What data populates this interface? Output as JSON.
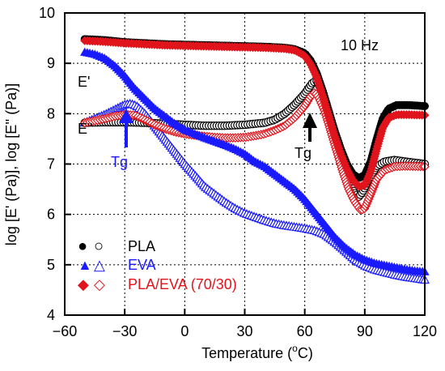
{
  "chart_data": {
    "type": "scatter",
    "title": "",
    "xlabel": "Temperature (",
    "xlabel_unit_sup": "o",
    "xlabel_unit_end": "C)",
    "ylabel": "log [E' (Pa)], log [E'' (Pa)]",
    "xlim": [
      -60,
      120
    ],
    "ylim": [
      4,
      10
    ],
    "x_ticks": [
      -60,
      -30,
      0,
      30,
      60,
      90,
      120
    ],
    "x_tick_labels": [
      "−60",
      "−30",
      "0",
      "30",
      "60",
      "90",
      "120"
    ],
    "y_ticks": [
      4,
      5,
      6,
      7,
      8,
      9,
      10
    ],
    "y_tick_labels": [
      "4",
      "5",
      "6",
      "7",
      "8",
      "9",
      "10"
    ],
    "grid": "dashed",
    "legend_placement": "bottom-left",
    "annotations": {
      "frequency": "10 Hz",
      "e_storage": "E'",
      "e_loss": "E\"",
      "tg_left": "Tg",
      "tg_right": "Tg"
    },
    "legend": [
      {
        "label": "PLA",
        "color": "#000000",
        "filled": "●",
        "open": "○"
      },
      {
        "label": "EVA",
        "color": "#1a1aff",
        "filled": "▲",
        "open": "△"
      },
      {
        "label": "PLA/EVA (70/30)",
        "color": "#e0141c",
        "filled": "◆",
        "open": "◇"
      }
    ],
    "series": [
      {
        "name": "PLA",
        "modulus": "E'",
        "marker": "circle",
        "fill": "filled",
        "color": "#000000",
        "points": [
          [
            -50,
            9.48
          ],
          [
            -40,
            9.46
          ],
          [
            -30,
            9.42
          ],
          [
            -20,
            9.4
          ],
          [
            -10,
            9.38
          ],
          [
            0,
            9.37
          ],
          [
            10,
            9.36
          ],
          [
            20,
            9.35
          ],
          [
            30,
            9.34
          ],
          [
            40,
            9.33
          ],
          [
            50,
            9.31
          ],
          [
            55,
            9.28
          ],
          [
            60,
            9.2
          ],
          [
            63,
            9.05
          ],
          [
            66,
            8.8
          ],
          [
            69,
            8.45
          ],
          [
            72,
            8.05
          ],
          [
            75,
            7.65
          ],
          [
            78,
            7.3
          ],
          [
            81,
            7.0
          ],
          [
            84,
            6.8
          ],
          [
            87,
            6.72
          ],
          [
            90,
            6.78
          ],
          [
            93,
            7.05
          ],
          [
            96,
            7.5
          ],
          [
            99,
            7.9
          ],
          [
            102,
            8.1
          ],
          [
            106,
            8.17
          ],
          [
            112,
            8.17
          ],
          [
            120,
            8.15
          ]
        ]
      },
      {
        "name": "PLA",
        "modulus": "E\"",
        "marker": "circle",
        "fill": "open",
        "color": "#000000",
        "points": [
          [
            -50,
            7.82
          ],
          [
            -40,
            7.83
          ],
          [
            -30,
            7.83
          ],
          [
            -20,
            7.82
          ],
          [
            -10,
            7.8
          ],
          [
            0,
            7.78
          ],
          [
            10,
            7.76
          ],
          [
            20,
            7.76
          ],
          [
            30,
            7.78
          ],
          [
            40,
            7.82
          ],
          [
            45,
            7.88
          ],
          [
            50,
            8.0
          ],
          [
            55,
            8.18
          ],
          [
            60,
            8.4
          ],
          [
            64,
            8.62
          ],
          [
            66,
            8.65
          ],
          [
            68,
            8.5
          ],
          [
            70,
            8.2
          ],
          [
            73,
            7.75
          ],
          [
            76,
            7.35
          ],
          [
            79,
            6.95
          ],
          [
            82,
            6.65
          ],
          [
            85,
            6.42
          ],
          [
            87,
            6.35
          ],
          [
            89,
            6.45
          ],
          [
            92,
            6.7
          ],
          [
            96,
            6.95
          ],
          [
            100,
            7.05
          ],
          [
            105,
            7.08
          ],
          [
            110,
            7.05
          ],
          [
            120,
            7.0
          ]
        ]
      },
      {
        "name": "EVA",
        "modulus": "E'",
        "marker": "triangle",
        "fill": "filled",
        "color": "#1a1aff",
        "points": [
          [
            -50,
            9.22
          ],
          [
            -45,
            9.18
          ],
          [
            -40,
            9.1
          ],
          [
            -35,
            8.95
          ],
          [
            -30,
            8.75
          ],
          [
            -25,
            8.5
          ],
          [
            -20,
            8.3
          ],
          [
            -15,
            8.1
          ],
          [
            -10,
            7.95
          ],
          [
            -5,
            7.8
          ],
          [
            0,
            7.68
          ],
          [
            5,
            7.6
          ],
          [
            10,
            7.52
          ],
          [
            15,
            7.45
          ],
          [
            20,
            7.38
          ],
          [
            25,
            7.3
          ],
          [
            30,
            7.2
          ],
          [
            35,
            7.05
          ],
          [
            40,
            6.95
          ],
          [
            45,
            6.8
          ],
          [
            50,
            6.65
          ],
          [
            55,
            6.5
          ],
          [
            60,
            6.3
          ],
          [
            65,
            6.05
          ],
          [
            70,
            5.8
          ],
          [
            75,
            5.55
          ],
          [
            80,
            5.35
          ],
          [
            85,
            5.2
          ],
          [
            90,
            5.1
          ],
          [
            95,
            5.03
          ],
          [
            100,
            4.99
          ],
          [
            105,
            4.95
          ],
          [
            110,
            4.91
          ],
          [
            115,
            4.88
          ],
          [
            120,
            4.86
          ]
        ]
      },
      {
        "name": "EVA",
        "modulus": "E\"",
        "marker": "triangle",
        "fill": "open",
        "color": "#1a1aff",
        "points": [
          [
            -50,
            7.82
          ],
          [
            -45,
            7.9
          ],
          [
            -40,
            7.98
          ],
          [
            -35,
            8.08
          ],
          [
            -30,
            8.18
          ],
          [
            -27,
            8.2
          ],
          [
            -24,
            8.15
          ],
          [
            -20,
            8.0
          ],
          [
            -15,
            7.75
          ],
          [
            -10,
            7.5
          ],
          [
            -5,
            7.25
          ],
          [
            0,
            7.0
          ],
          [
            5,
            6.78
          ],
          [
            10,
            6.55
          ],
          [
            15,
            6.4
          ],
          [
            20,
            6.25
          ],
          [
            25,
            6.12
          ],
          [
            30,
            6.02
          ],
          [
            35,
            5.95
          ],
          [
            40,
            5.88
          ],
          [
            45,
            5.82
          ],
          [
            50,
            5.78
          ],
          [
            55,
            5.75
          ],
          [
            60,
            5.72
          ],
          [
            65,
            5.68
          ],
          [
            70,
            5.6
          ],
          [
            75,
            5.45
          ],
          [
            80,
            5.28
          ],
          [
            85,
            5.1
          ],
          [
            90,
            4.98
          ],
          [
            95,
            4.9
          ],
          [
            100,
            4.85
          ],
          [
            105,
            4.8
          ],
          [
            110,
            4.76
          ],
          [
            115,
            4.73
          ],
          [
            120,
            4.7
          ]
        ]
      },
      {
        "name": "PLA/EVA (70/30)",
        "modulus": "E'",
        "marker": "diamond",
        "fill": "filled",
        "color": "#e0141c",
        "points": [
          [
            -50,
            9.45
          ],
          [
            -40,
            9.43
          ],
          [
            -30,
            9.4
          ],
          [
            -20,
            9.38
          ],
          [
            -10,
            9.36
          ],
          [
            0,
            9.35
          ],
          [
            10,
            9.34
          ],
          [
            20,
            9.33
          ],
          [
            30,
            9.32
          ],
          [
            40,
            9.31
          ],
          [
            50,
            9.29
          ],
          [
            55,
            9.26
          ],
          [
            60,
            9.15
          ],
          [
            63,
            8.98
          ],
          [
            66,
            8.72
          ],
          [
            69,
            8.35
          ],
          [
            72,
            7.95
          ],
          [
            75,
            7.55
          ],
          [
            78,
            7.2
          ],
          [
            81,
            6.9
          ],
          [
            84,
            6.68
          ],
          [
            87,
            6.55
          ],
          [
            90,
            6.58
          ],
          [
            93,
            6.85
          ],
          [
            96,
            7.3
          ],
          [
            99,
            7.72
          ],
          [
            102,
            7.92
          ],
          [
            106,
            7.98
          ],
          [
            112,
            7.98
          ],
          [
            120,
            7.97
          ]
        ]
      },
      {
        "name": "PLA/EVA (70/30)",
        "modulus": "E\"",
        "marker": "diamond",
        "fill": "open",
        "color": "#e0141c",
        "points": [
          [
            -50,
            7.82
          ],
          [
            -45,
            7.86
          ],
          [
            -40,
            7.9
          ],
          [
            -35,
            7.95
          ],
          [
            -30,
            7.98
          ],
          [
            -25,
            7.97
          ],
          [
            -20,
            7.88
          ],
          [
            -15,
            7.78
          ],
          [
            -10,
            7.7
          ],
          [
            -5,
            7.64
          ],
          [
            0,
            7.6
          ],
          [
            5,
            7.57
          ],
          [
            10,
            7.55
          ],
          [
            15,
            7.53
          ],
          [
            20,
            7.52
          ],
          [
            25,
            7.52
          ],
          [
            30,
            7.53
          ],
          [
            35,
            7.56
          ],
          [
            40,
            7.6
          ],
          [
            45,
            7.67
          ],
          [
            50,
            7.76
          ],
          [
            55,
            7.92
          ],
          [
            60,
            8.15
          ],
          [
            63,
            8.35
          ],
          [
            65,
            8.42
          ],
          [
            67,
            8.32
          ],
          [
            70,
            8.05
          ],
          [
            73,
            7.65
          ],
          [
            76,
            7.25
          ],
          [
            79,
            6.85
          ],
          [
            82,
            6.5
          ],
          [
            85,
            6.25
          ],
          [
            88,
            6.08
          ],
          [
            90,
            6.12
          ],
          [
            93,
            6.4
          ],
          [
            96,
            6.7
          ],
          [
            100,
            6.88
          ],
          [
            105,
            6.95
          ],
          [
            110,
            6.96
          ],
          [
            120,
            6.95
          ]
        ]
      }
    ]
  }
}
